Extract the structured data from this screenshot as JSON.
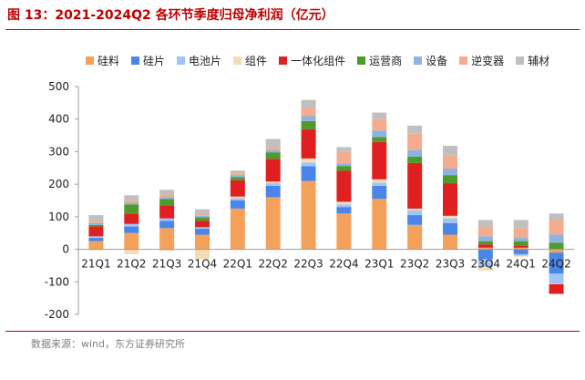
{
  "header": {
    "title": "图 13：2021-2024Q2 各环节季度归母净利润（亿元）"
  },
  "footer": {
    "source": "数据来源：wind，东方证券研究所"
  },
  "colors": {
    "title": "#c00000",
    "rule": "#c00000",
    "axis": "#9e9e9e",
    "source_text": "#808080"
  },
  "chart_data": {
    "type": "bar",
    "stacked": true,
    "title": "",
    "xlabel": "",
    "ylabel": "",
    "ylim": [
      -200,
      500
    ],
    "yticks": [
      -200,
      -100,
      0,
      100,
      200,
      300,
      400,
      500
    ],
    "grid": false,
    "legend_position": "top",
    "categories": [
      "21Q1",
      "21Q2",
      "21Q3",
      "21Q4",
      "22Q1",
      "22Q2",
      "22Q3",
      "22Q4",
      "23Q1",
      "23Q2",
      "23Q3",
      "23Q4",
      "24Q1",
      "24Q2"
    ],
    "series": [
      {
        "name": "硅料",
        "color": "#f4a15c",
        "values": [
          25,
          50,
          65,
          45,
          125,
          160,
          210,
          110,
          155,
          75,
          45,
          5,
          5,
          -10
        ]
      },
      {
        "name": "硅片",
        "color": "#4a86e8",
        "values": [
          10,
          20,
          22,
          18,
          25,
          35,
          45,
          20,
          40,
          30,
          35,
          -30,
          -15,
          -65
        ]
      },
      {
        "name": "电池片",
        "color": "#9fc5f8",
        "values": [
          5,
          8,
          8,
          5,
          7,
          8,
          12,
          8,
          10,
          15,
          15,
          -25,
          -5,
          -30
        ]
      },
      {
        "name": "组件",
        "color": "#f6dcb5",
        "values": [
          -3,
          -15,
          -5,
          -30,
          5,
          5,
          12,
          8,
          10,
          5,
          8,
          -10,
          -3,
          -2
        ]
      },
      {
        "name": "一体化组件",
        "color": "#e02020",
        "values": [
          30,
          30,
          40,
          20,
          50,
          70,
          90,
          95,
          115,
          140,
          100,
          10,
          5,
          -30
        ]
      },
      {
        "name": "运营商",
        "color": "#4e9a2a",
        "values": [
          5,
          30,
          20,
          10,
          10,
          20,
          25,
          15,
          15,
          20,
          25,
          10,
          15,
          20
        ]
      },
      {
        "name": "设备",
        "color": "#8db3e2",
        "values": [
          5,
          5,
          5,
          5,
          5,
          8,
          15,
          8,
          20,
          20,
          20,
          15,
          10,
          25
        ]
      },
      {
        "name": "逆变器",
        "color": "#f4ac8e",
        "values": [
          5,
          8,
          8,
          5,
          5,
          8,
          25,
          35,
          35,
          50,
          40,
          30,
          30,
          45
        ]
      },
      {
        "name": "辅材",
        "color": "#c0c0c0",
        "values": [
          20,
          15,
          15,
          15,
          10,
          25,
          25,
          15,
          20,
          25,
          30,
          20,
          25,
          20
        ]
      }
    ]
  }
}
